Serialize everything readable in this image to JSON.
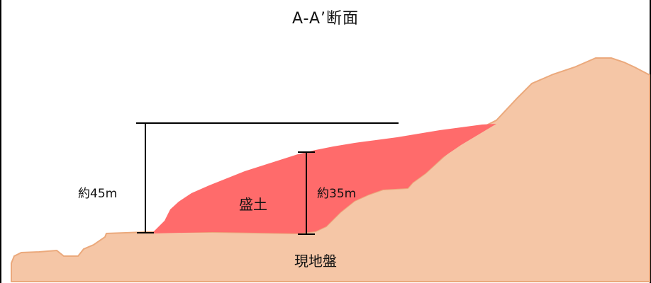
{
  "title": "A-A’断面",
  "labels": {
    "embankment": "盛土",
    "ground": "現地盤",
    "total_height": "約45m",
    "fill_height": "約35m"
  },
  "colors": {
    "ground_fill": "#f5c6a6",
    "ground_stroke": "#eba97c",
    "embankment_fill": "#ff6b6b",
    "line": "#000000"
  }
}
